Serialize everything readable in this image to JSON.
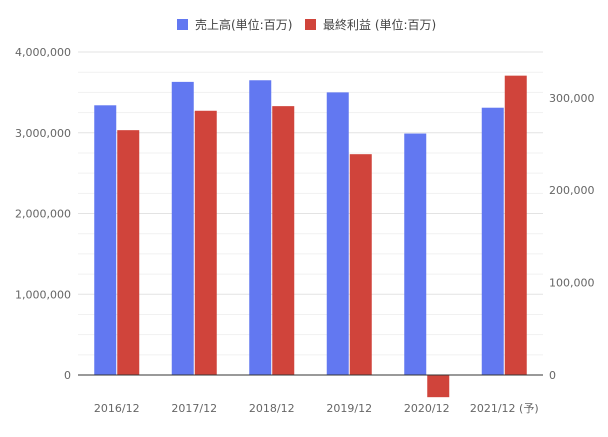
{
  "chart_data": {
    "type": "bar",
    "categories": [
      "2016/12",
      "2017/12",
      "2018/12",
      "2019/12",
      "2020/12",
      "2021/12 (予)"
    ],
    "series": [
      {
        "name": "売上高(単位:百万)",
        "axis": "left",
        "color": "#6278F1",
        "values": [
          3340000,
          3630000,
          3650000,
          3500000,
          2990000,
          3310000
        ]
      },
      {
        "name": "最終利益 (単位:百万)",
        "axis": "right",
        "color": "#D0443B",
        "values": [
          265000,
          286000,
          291000,
          239000,
          -24000,
          324000
        ]
      }
    ],
    "y_left": {
      "min": 0,
      "max": 4000000,
      "ticks": [
        0,
        1000000,
        2000000,
        3000000,
        4000000
      ],
      "tick_labels": [
        "0",
        "1,000,000",
        "2,000,000",
        "3,000,000",
        "4,000,000"
      ]
    },
    "y_right": {
      "min": 0,
      "max": 349600,
      "ticks": [
        0,
        100000,
        200000,
        300000
      ],
      "tick_labels": [
        "0",
        "100,000",
        "200,000",
        "300,000"
      ]
    },
    "legend_position": "top-center",
    "grid": true
  }
}
